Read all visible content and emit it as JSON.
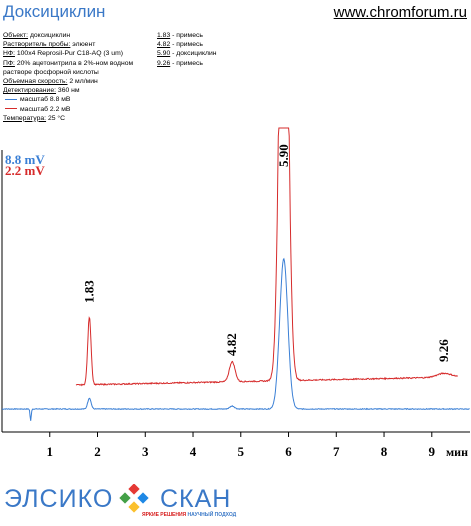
{
  "header": {
    "title": "Доксициклин",
    "site": "www.chromforum.ru"
  },
  "info": {
    "object_label": "Объект:",
    "object_value": "доксициклин",
    "solvent_label": "Растворитель пробы:",
    "solvent_value": "элюент",
    "phase_label": "НФ:",
    "phase_value": "100x4 Reprosil-Pur C18-AQ (3 um)",
    "mobile_label": "ПФ:",
    "mobile_value_1": "20% ацетонитрила в 2%-ном водном",
    "mobile_value_2": "растворе фосфорной кислоты",
    "flow_label": "Объемная скорость:",
    "flow_value": "2 мл/мин",
    "detect_label": "Детектирование:",
    "detect_value": "360 нм",
    "legend_blue": "масштаб 8.8 мВ",
    "legend_red": "масштаб 2.2 мВ",
    "temp_label": "Температура:",
    "temp_value": "25 °C"
  },
  "peaks_table": [
    {
      "rt": "1.83",
      "desc": "- примесь"
    },
    {
      "rt": "4.82",
      "desc": "- примесь"
    },
    {
      "rt": "5.90",
      "desc": "- доксициклин"
    },
    {
      "rt": "9.26",
      "desc": "- примесь"
    }
  ],
  "colors": {
    "blue": "#3a7fd5",
    "red": "#d62b2b",
    "brand": "#3a78c7"
  },
  "chart_data": {
    "type": "line",
    "xlabel": "мин",
    "xlim": [
      0,
      9.8
    ],
    "x_ticks": [
      1,
      2,
      3,
      4,
      5,
      6,
      7,
      8,
      9
    ],
    "scale_labels": [
      {
        "text": "8.8 mV",
        "color": "#3a7fd5"
      },
      {
        "text": "2.2 mV",
        "color": "#d62b2b"
      }
    ],
    "peak_labels": [
      "1.83",
      "4.82",
      "5.90",
      "9.26"
    ],
    "series": [
      {
        "color": "#3a7fd5",
        "x_range": [
          0,
          9.8
        ],
        "baseline": 0.0,
        "noise": 0.8,
        "dips": [
          {
            "x": 0.6,
            "depth": 12
          }
        ],
        "peaks": [
          {
            "x": 1.83,
            "height": 11,
            "width": 0.035
          },
          {
            "x": 4.82,
            "height": 3,
            "width": 0.05
          },
          {
            "x": 5.9,
            "height": 150,
            "width": 0.085
          }
        ]
      },
      {
        "color": "#d62b2b",
        "x_range": [
          1.55,
          9.55
        ],
        "baseline": 0.0,
        "drift": 8,
        "noise": 1.2,
        "peaks": [
          {
            "x": 1.83,
            "height": 68,
            "width": 0.035
          },
          {
            "x": 4.82,
            "height": 20,
            "width": 0.06
          },
          {
            "x": 5.9,
            "height": 600,
            "width": 0.085
          },
          {
            "x": 9.26,
            "height": 4,
            "width": 0.15
          }
        ]
      }
    ]
  },
  "logo": {
    "left": "ЭЛСИКО",
    "right": "СКАН",
    "tag_a": "ЯРКИЕ РЕШЕНИЯ",
    "tag_b": "НАУЧНЫЙ ПОДХОД"
  }
}
